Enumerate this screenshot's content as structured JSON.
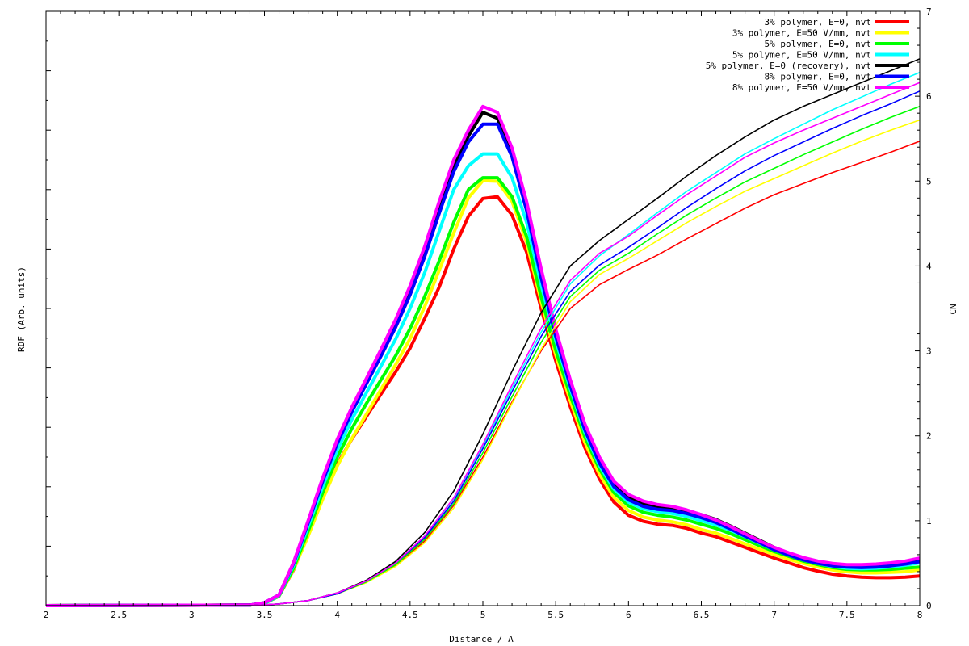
{
  "chart_data": {
    "type": "line",
    "title": "",
    "xlabel": "Distance / A",
    "ylabel": "RDF (Arb. units)",
    "y2label": "CN",
    "xlim": [
      2,
      8
    ],
    "ylim": [
      0,
      1
    ],
    "y2lim": [
      0,
      7
    ],
    "legend_position": "top-right",
    "grid": false,
    "x_ticks": [
      "2",
      "2.5",
      "3",
      "3.5",
      "4",
      "4.5",
      "5",
      "5.5",
      "6",
      "6.5",
      "7",
      "7.5",
      "8"
    ],
    "y2_ticks": [
      "0",
      "1",
      "2",
      "3",
      "4",
      "5",
      "6",
      "7"
    ],
    "series": [
      {
        "name": "3% polymer, E=0, nvt",
        "color": "#ff0000",
        "rdf_x": [
          2.0,
          3.4,
          3.5,
          3.6,
          3.7,
          3.8,
          3.9,
          4.0,
          4.1,
          4.2,
          4.3,
          4.4,
          4.5,
          4.6,
          4.7,
          4.8,
          4.9,
          5.0,
          5.1,
          5.2,
          5.3,
          5.4,
          5.5,
          5.6,
          5.7,
          5.8,
          5.9,
          6.0,
          6.1,
          6.2,
          6.3,
          6.4,
          6.5,
          6.6,
          6.7,
          6.8,
          6.9,
          7.0,
          7.1,
          7.2,
          7.3,
          7.4,
          7.5,
          7.6,
          7.7,
          7.8,
          7.9,
          8.0
        ],
        "rdf_y": [
          0.0,
          0.001,
          0.004,
          0.016,
          0.06,
          0.12,
          0.18,
          0.238,
          0.28,
          0.318,
          0.356,
          0.393,
          0.433,
          0.483,
          0.536,
          0.6,
          0.655,
          0.685,
          0.688,
          0.657,
          0.595,
          0.5,
          0.412,
          0.335,
          0.266,
          0.213,
          0.174,
          0.152,
          0.142,
          0.137,
          0.135,
          0.13,
          0.122,
          0.116,
          0.107,
          0.098,
          0.089,
          0.08,
          0.072,
          0.064,
          0.058,
          0.053,
          0.05,
          0.048,
          0.047,
          0.047,
          0.048,
          0.05
        ],
        "cn_x": [
          2.0,
          3.4,
          3.6,
          3.8,
          4.0,
          4.2,
          4.4,
          4.6,
          4.8,
          5.0,
          5.2,
          5.4,
          5.6,
          5.8,
          6.0,
          6.2,
          6.4,
          6.6,
          6.8,
          7.0,
          7.2,
          7.4,
          7.6,
          7.8,
          8.0
        ],
        "cn_y": [
          0.0,
          0.0,
          0.02,
          0.06,
          0.14,
          0.28,
          0.47,
          0.76,
          1.18,
          1.75,
          2.4,
          3.0,
          3.5,
          3.78,
          3.96,
          4.13,
          4.32,
          4.5,
          4.68,
          4.84,
          4.97,
          5.1,
          5.22,
          5.34,
          5.47
        ]
      },
      {
        "name": "3% polymer, E=50 V/mm, nvt",
        "color": "#ffff00",
        "rdf_x": [
          2.0,
          3.4,
          3.5,
          3.6,
          3.7,
          3.8,
          3.9,
          4.0,
          4.1,
          4.2,
          4.3,
          4.4,
          4.5,
          4.6,
          4.7,
          4.8,
          4.9,
          5.0,
          5.1,
          5.2,
          5.3,
          5.4,
          5.5,
          5.6,
          5.7,
          5.8,
          5.9,
          6.0,
          6.1,
          6.2,
          6.3,
          6.4,
          6.5,
          6.6,
          6.7,
          6.8,
          6.9,
          7.0,
          7.1,
          7.2,
          7.3,
          7.4,
          7.5,
          7.6,
          7.7,
          7.8,
          7.9,
          8.0
        ],
        "rdf_y": [
          0.0,
          0.001,
          0.004,
          0.016,
          0.061,
          0.117,
          0.179,
          0.235,
          0.281,
          0.322,
          0.364,
          0.405,
          0.449,
          0.503,
          0.564,
          0.627,
          0.686,
          0.715,
          0.714,
          0.68,
          0.612,
          0.512,
          0.422,
          0.345,
          0.275,
          0.221,
          0.182,
          0.16,
          0.149,
          0.144,
          0.141,
          0.136,
          0.128,
          0.122,
          0.113,
          0.104,
          0.095,
          0.086,
          0.078,
          0.071,
          0.065,
          0.06,
          0.057,
          0.055,
          0.055,
          0.056,
          0.057,
          0.06
        ],
        "cn_x": [
          2.0,
          3.4,
          3.6,
          3.8,
          4.0,
          4.2,
          4.4,
          4.6,
          4.8,
          5.0,
          5.2,
          5.4,
          5.6,
          5.8,
          6.0,
          6.2,
          6.4,
          6.6,
          6.8,
          7.0,
          7.2,
          7.4,
          7.6,
          7.8,
          8.0
        ],
        "cn_y": [
          0.0,
          0.0,
          0.02,
          0.06,
          0.14,
          0.27,
          0.46,
          0.74,
          1.15,
          1.72,
          2.38,
          3.02,
          3.58,
          3.9,
          4.09,
          4.3,
          4.51,
          4.7,
          4.88,
          5.03,
          5.18,
          5.33,
          5.47,
          5.6,
          5.72
        ]
      },
      {
        "name": "5% polymer, E=0, nvt",
        "color": "#00ff00",
        "rdf_x": [
          2.0,
          3.4,
          3.5,
          3.6,
          3.7,
          3.8,
          3.9,
          4.0,
          4.1,
          4.2,
          4.3,
          4.4,
          4.5,
          4.6,
          4.7,
          4.8,
          4.9,
          5.0,
          5.1,
          5.2,
          5.3,
          5.4,
          5.5,
          5.6,
          5.7,
          5.8,
          5.9,
          6.0,
          6.1,
          6.2,
          6.3,
          6.4,
          6.5,
          6.6,
          6.7,
          6.8,
          6.9,
          7.0,
          7.1,
          7.2,
          7.3,
          7.4,
          7.5,
          7.6,
          7.7,
          7.8,
          7.9,
          8.0
        ],
        "rdf_y": [
          0.0,
          0.001,
          0.004,
          0.016,
          0.063,
          0.125,
          0.19,
          0.25,
          0.298,
          0.34,
          0.38,
          0.42,
          0.466,
          0.52,
          0.58,
          0.645,
          0.7,
          0.72,
          0.72,
          0.688,
          0.621,
          0.52,
          0.43,
          0.354,
          0.284,
          0.23,
          0.19,
          0.168,
          0.157,
          0.152,
          0.149,
          0.144,
          0.137,
          0.13,
          0.121,
          0.111,
          0.101,
          0.091,
          0.083,
          0.075,
          0.069,
          0.064,
          0.061,
          0.06,
          0.06,
          0.061,
          0.063,
          0.065
        ],
        "cn_x": [
          2.0,
          3.4,
          3.6,
          3.8,
          4.0,
          4.2,
          4.4,
          4.6,
          4.8,
          5.0,
          5.2,
          5.4,
          5.6,
          5.8,
          6.0,
          6.2,
          6.4,
          6.6,
          6.8,
          7.0,
          7.2,
          7.4,
          7.6,
          7.8,
          8.0
        ],
        "cn_y": [
          0.0,
          0.0,
          0.02,
          0.06,
          0.14,
          0.28,
          0.48,
          0.78,
          1.2,
          1.8,
          2.46,
          3.1,
          3.64,
          3.95,
          4.15,
          4.38,
          4.6,
          4.8,
          4.99,
          5.15,
          5.31,
          5.46,
          5.61,
          5.75,
          5.88
        ]
      },
      {
        "name": "5% polymer, E=50 V/mm, nvt",
        "color": "#00ffff",
        "rdf_x": [
          2.0,
          3.4,
          3.5,
          3.6,
          3.7,
          3.8,
          3.9,
          4.0,
          4.1,
          4.2,
          4.3,
          4.4,
          4.5,
          4.6,
          4.7,
          4.8,
          4.9,
          5.0,
          5.1,
          5.2,
          5.3,
          5.4,
          5.5,
          5.6,
          5.7,
          5.8,
          5.9,
          6.0,
          6.1,
          6.2,
          6.3,
          6.4,
          6.5,
          6.6,
          6.7,
          6.8,
          6.9,
          7.0,
          7.1,
          7.2,
          7.3,
          7.4,
          7.5,
          7.6,
          7.7,
          7.8,
          7.9,
          8.0
        ],
        "rdf_y": [
          0.0,
          0.001,
          0.004,
          0.017,
          0.068,
          0.133,
          0.2,
          0.262,
          0.313,
          0.358,
          0.403,
          0.448,
          0.5,
          0.56,
          0.63,
          0.7,
          0.74,
          0.76,
          0.76,
          0.72,
          0.645,
          0.54,
          0.446,
          0.365,
          0.292,
          0.236,
          0.196,
          0.174,
          0.163,
          0.158,
          0.155,
          0.15,
          0.143,
          0.136,
          0.127,
          0.116,
          0.105,
          0.094,
          0.085,
          0.077,
          0.071,
          0.066,
          0.063,
          0.062,
          0.063,
          0.065,
          0.068,
          0.072
        ],
        "cn_x": [
          2.0,
          3.4,
          3.6,
          3.8,
          4.0,
          4.2,
          4.4,
          4.6,
          4.8,
          5.0,
          5.2,
          5.4,
          5.6,
          5.8,
          6.0,
          6.2,
          6.4,
          6.6,
          6.8,
          7.0,
          7.2,
          7.4,
          7.6,
          7.8,
          8.0
        ],
        "cn_y": [
          0.0,
          0.0,
          0.02,
          0.06,
          0.15,
          0.29,
          0.5,
          0.82,
          1.26,
          1.88,
          2.56,
          3.22,
          3.79,
          4.12,
          4.37,
          4.63,
          4.88,
          5.1,
          5.32,
          5.5,
          5.67,
          5.84,
          5.99,
          6.14,
          6.28
        ]
      },
      {
        "name": "5% polymer, E=0 (recovery), nvt",
        "color": "#000000",
        "rdf_x": [
          2.0,
          3.4,
          3.5,
          3.6,
          3.7,
          3.8,
          3.9,
          4.0,
          4.1,
          4.2,
          4.3,
          4.4,
          4.5,
          4.6,
          4.7,
          4.8,
          4.9,
          5.0,
          5.1,
          5.2,
          5.3,
          5.4,
          5.5,
          5.6,
          5.7,
          5.8,
          5.9,
          6.0,
          6.1,
          6.2,
          6.3,
          6.4,
          6.5,
          6.6,
          6.7,
          6.8,
          6.9,
          7.0,
          7.1,
          7.2,
          7.3,
          7.4,
          7.5,
          7.6,
          7.7,
          7.8,
          7.9,
          8.0
        ],
        "rdf_y": [
          0.0,
          0.001,
          0.005,
          0.018,
          0.072,
          0.141,
          0.212,
          0.276,
          0.329,
          0.377,
          0.424,
          0.474,
          0.53,
          0.595,
          0.67,
          0.74,
          0.79,
          0.83,
          0.82,
          0.76,
          0.67,
          0.555,
          0.455,
          0.372,
          0.298,
          0.242,
          0.203,
          0.182,
          0.172,
          0.167,
          0.165,
          0.16,
          0.153,
          0.145,
          0.134,
          0.122,
          0.11,
          0.098,
          0.088,
          0.08,
          0.074,
          0.069,
          0.066,
          0.065,
          0.066,
          0.068,
          0.071,
          0.075
        ],
        "cn_x": [
          2.0,
          3.4,
          3.6,
          3.8,
          4.0,
          4.2,
          4.4,
          4.6,
          4.8,
          5.0,
          5.2,
          5.4,
          5.6,
          5.8,
          6.0,
          6.2,
          6.4,
          6.6,
          6.8,
          7.0,
          7.2,
          7.4,
          7.6,
          7.8,
          8.0
        ],
        "cn_y": [
          0.0,
          0.0,
          0.02,
          0.06,
          0.15,
          0.3,
          0.52,
          0.86,
          1.35,
          2.02,
          2.76,
          3.45,
          4.0,
          4.3,
          4.55,
          4.8,
          5.06,
          5.3,
          5.52,
          5.72,
          5.88,
          6.02,
          6.16,
          6.3,
          6.44
        ]
      },
      {
        "name": "8% polymer, E=0, nvt",
        "color": "#0000ff",
        "rdf_x": [
          2.0,
          3.4,
          3.5,
          3.6,
          3.7,
          3.8,
          3.9,
          4.0,
          4.1,
          4.2,
          4.3,
          4.4,
          4.5,
          4.6,
          4.7,
          4.8,
          4.9,
          5.0,
          5.1,
          5.2,
          5.3,
          5.4,
          5.5,
          5.6,
          5.7,
          5.8,
          5.9,
          6.0,
          6.1,
          6.2,
          6.3,
          6.4,
          6.5,
          6.6,
          6.7,
          6.8,
          6.9,
          7.0,
          7.1,
          7.2,
          7.3,
          7.4,
          7.5,
          7.6,
          7.7,
          7.8,
          7.9,
          8.0
        ],
        "rdf_y": [
          0.0,
          0.001,
          0.005,
          0.018,
          0.071,
          0.139,
          0.209,
          0.273,
          0.326,
          0.373,
          0.42,
          0.468,
          0.523,
          0.587,
          0.66,
          0.73,
          0.78,
          0.81,
          0.81,
          0.755,
          0.665,
          0.552,
          0.453,
          0.37,
          0.296,
          0.24,
          0.2,
          0.178,
          0.167,
          0.162,
          0.16,
          0.155,
          0.148,
          0.14,
          0.129,
          0.117,
          0.106,
          0.094,
          0.085,
          0.077,
          0.071,
          0.067,
          0.065,
          0.064,
          0.065,
          0.067,
          0.07,
          0.074
        ],
        "cn_x": [
          2.0,
          3.4,
          3.6,
          3.8,
          4.0,
          4.2,
          4.4,
          4.6,
          4.8,
          5.0,
          5.2,
          5.4,
          5.6,
          5.8,
          6.0,
          6.2,
          6.4,
          6.6,
          6.8,
          7.0,
          7.2,
          7.4,
          7.6,
          7.8,
          8.0
        ],
        "cn_y": [
          0.0,
          0.0,
          0.02,
          0.06,
          0.14,
          0.29,
          0.5,
          0.8,
          1.23,
          1.85,
          2.52,
          3.17,
          3.7,
          4.01,
          4.22,
          4.45,
          4.69,
          4.91,
          5.12,
          5.3,
          5.46,
          5.62,
          5.77,
          5.91,
          6.06
        ]
      },
      {
        "name": "8% polymer, E=50 V/mm, nvt",
        "color": "#ff00ff",
        "rdf_x": [
          2.0,
          3.4,
          3.5,
          3.6,
          3.7,
          3.8,
          3.9,
          4.0,
          4.1,
          4.2,
          4.3,
          4.4,
          4.5,
          4.6,
          4.7,
          4.8,
          4.9,
          5.0,
          5.1,
          5.2,
          5.3,
          5.4,
          5.5,
          5.6,
          5.7,
          5.8,
          5.9,
          6.0,
          6.1,
          6.2,
          6.3,
          6.4,
          6.5,
          6.6,
          6.7,
          6.8,
          6.9,
          7.0,
          7.1,
          7.2,
          7.3,
          7.4,
          7.5,
          7.6,
          7.7,
          7.8,
          7.9,
          8.0
        ],
        "rdf_y": [
          0.0,
          0.001,
          0.005,
          0.018,
          0.073,
          0.143,
          0.215,
          0.28,
          0.334,
          0.382,
          0.431,
          0.481,
          0.538,
          0.604,
          0.68,
          0.75,
          0.8,
          0.84,
          0.83,
          0.77,
          0.68,
          0.567,
          0.465,
          0.38,
          0.306,
          0.25,
          0.209,
          0.187,
          0.176,
          0.17,
          0.167,
          0.161,
          0.153,
          0.144,
          0.133,
          0.121,
          0.109,
          0.098,
          0.089,
          0.081,
          0.075,
          0.071,
          0.069,
          0.069,
          0.07,
          0.072,
          0.075,
          0.08
        ],
        "cn_x": [
          2.0,
          3.4,
          3.6,
          3.8,
          4.0,
          4.2,
          4.4,
          4.6,
          4.8,
          5.0,
          5.2,
          5.4,
          5.6,
          5.8,
          6.0,
          6.2,
          6.4,
          6.6,
          6.8,
          7.0,
          7.2,
          7.4,
          7.6,
          7.8,
          8.0
        ],
        "cn_y": [
          0.0,
          0.0,
          0.02,
          0.06,
          0.15,
          0.29,
          0.5,
          0.82,
          1.27,
          1.9,
          2.6,
          3.27,
          3.83,
          4.15,
          4.35,
          4.6,
          4.84,
          5.06,
          5.28,
          5.45,
          5.6,
          5.74,
          5.88,
          6.02,
          6.16
        ]
      }
    ]
  }
}
